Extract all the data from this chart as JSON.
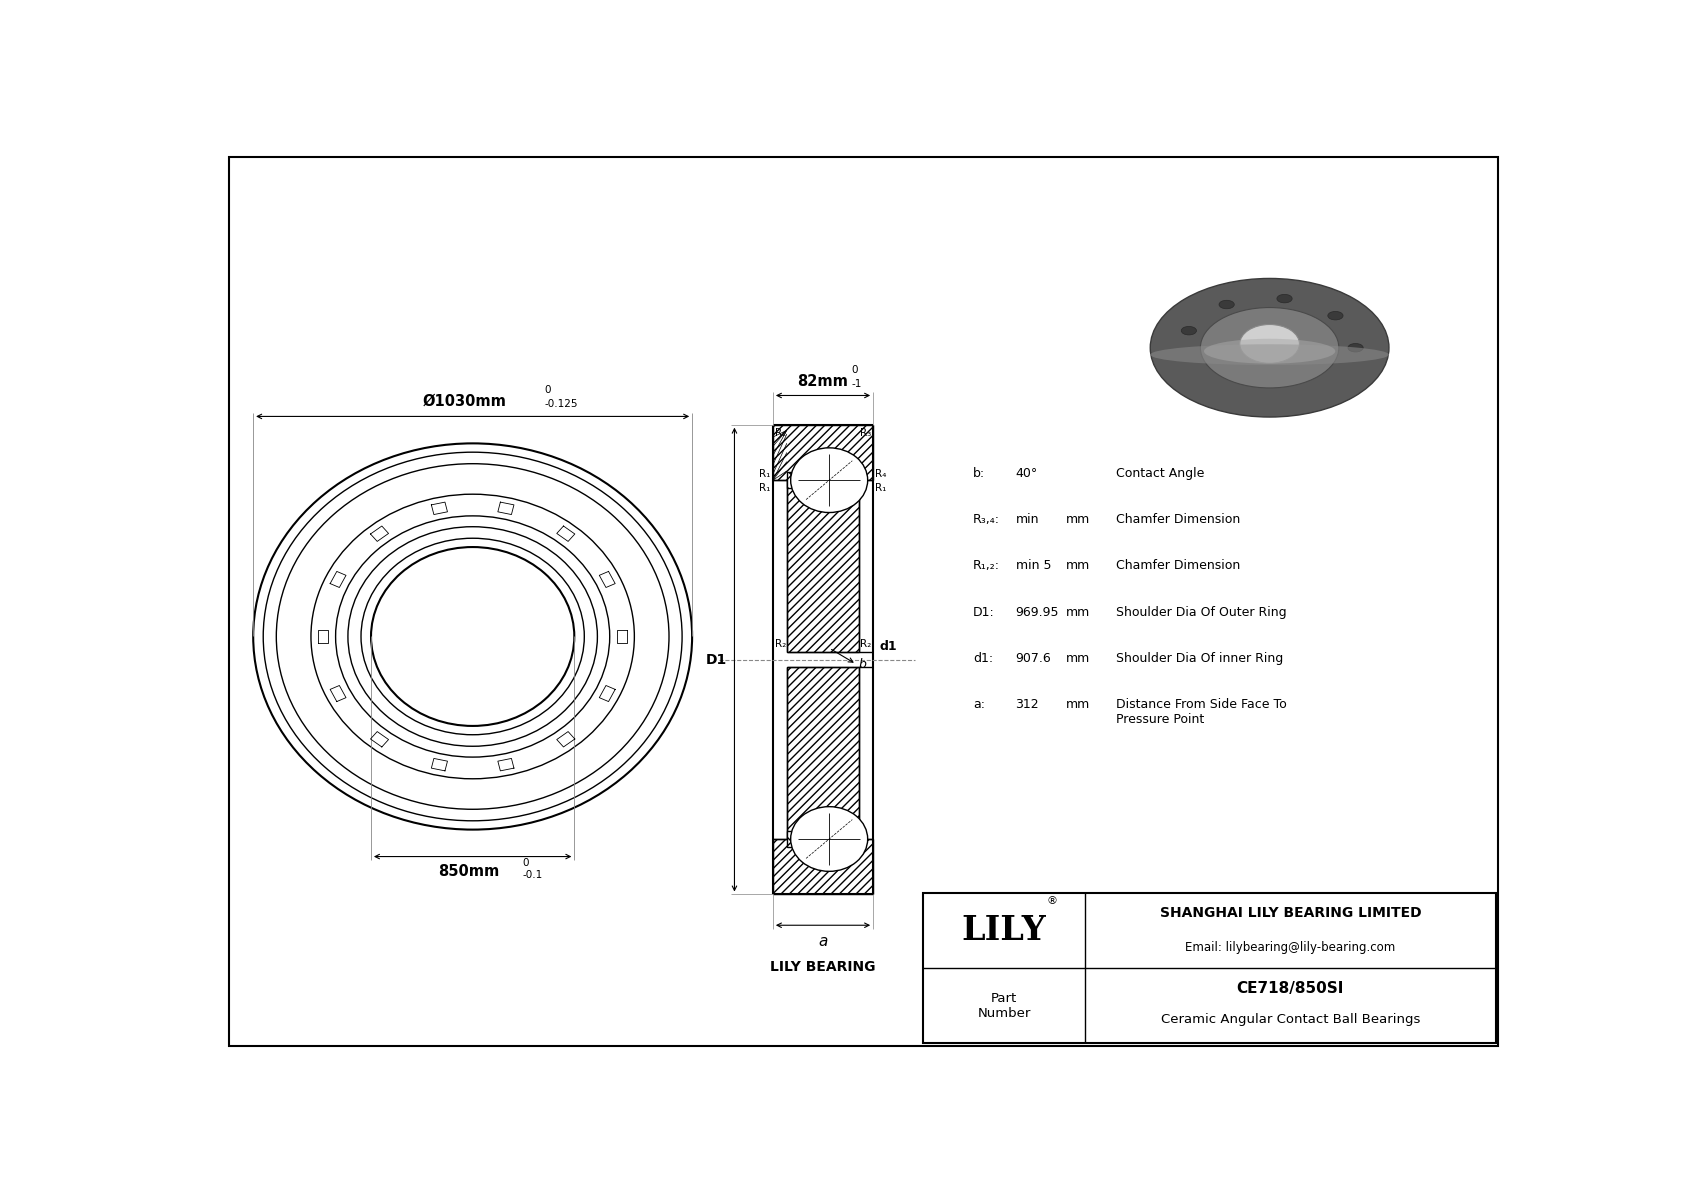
{
  "bg_color": "#ffffff",
  "line_color": "#000000",
  "title": "CE718/850SI",
  "subtitle": "Ceramic Angular Contact Ball Bearings",
  "company": "SHANGHAI LILY BEARING LIMITED",
  "email": "Email: lilybearing@lily-bearing.com",
  "lily_logo": "LILY",
  "part_label": "Part\nNumber",
  "bearing_label": "LILY BEARING",
  "outer_dia_label": "Ø1030mm",
  "outer_dia_tol_upper": "0",
  "outer_dia_tol_lower": "-0.125",
  "width_label": "82mm",
  "width_tol_upper": "0",
  "width_tol_lower": "-1",
  "inner_dia_label": "850mm",
  "inner_dia_tol_upper": "0",
  "inner_dia_tol_lower": "-0.1",
  "params": [
    [
      "b:",
      "40°",
      "",
      "Contact Angle"
    ],
    [
      "R₃,₄:",
      "min",
      "mm",
      "Chamfer Dimension"
    ],
    [
      "R₁,₂:",
      "min 5",
      "mm",
      "Chamfer Dimension"
    ],
    [
      "D1:",
      "969.95",
      "mm",
      "Shoulder Dia Of Outer Ring"
    ],
    [
      "d1:",
      "907.6",
      "mm",
      "Shoulder Dia Of inner Ring"
    ],
    [
      "a:",
      "312",
      "mm",
      "Distance From Side Face To\nPressure Point"
    ]
  ]
}
